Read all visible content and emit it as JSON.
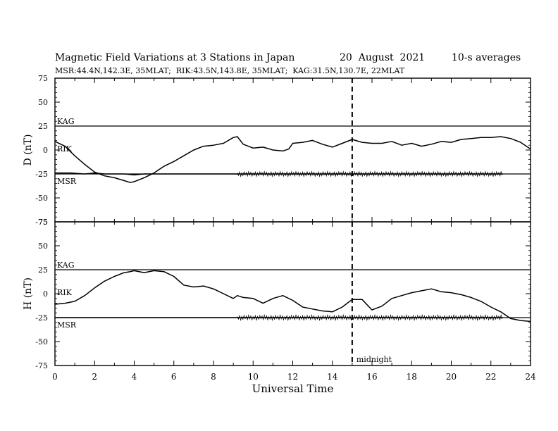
{
  "header": {
    "title": "Magnetic Field Variations at 3 Stations in Japan",
    "date": "20  August  2021",
    "averaging": "10-s averages",
    "stations": "MSR:44.4N,142.3E, 35MLAT;  RIK:43.5N,143.8E, 35MLAT;  KAG:31.5N,130.7E, 22MLAT"
  },
  "chart_data": {
    "type": "line",
    "xlabel": "Universal Time",
    "x_ticks": [
      "0",
      "2",
      "4",
      "6",
      "8",
      "10",
      "12",
      "14",
      "16",
      "18",
      "20",
      "22",
      "24"
    ],
    "xlim": [
      0,
      24
    ],
    "marker": {
      "x": 15,
      "label": "midnight",
      "style": "dashed"
    },
    "panels": [
      {
        "ylabel": "D (nT)",
        "ylim": [
          -75,
          75
        ],
        "y_ticks": [
          "75",
          "50",
          "25",
          "0",
          "-25",
          "-50",
          "-75"
        ],
        "baselines": [
          {
            "name": "KAG",
            "value": 25
          },
          {
            "name": "RIK",
            "value": 0
          },
          {
            "name": "MSR",
            "value": -25
          }
        ],
        "series": [
          {
            "name": "KAG",
            "x": [],
            "y": []
          },
          {
            "name": "RIK",
            "x": [
              0,
              0.5,
              1,
              1.5,
              2,
              2.5,
              3,
              3.5,
              3.8,
              4,
              4.5,
              5,
              5.5,
              6,
              6.5,
              7,
              7.5,
              8,
              8.5,
              9,
              9.2,
              9.5,
              10,
              10.5,
              11,
              11.5,
              11.8,
              12,
              12.5,
              13,
              13.5,
              14,
              14.5,
              15,
              15.5,
              16,
              16.5,
              17,
              17.5,
              18,
              18.5,
              19,
              19.5,
              20,
              20.5,
              21,
              21.5,
              22,
              22.5,
              23,
              23.5,
              24
            ],
            "y": [
              9,
              4,
              -6,
              -15,
              -23,
              -27,
              -29,
              -32,
              -34,
              -33,
              -29,
              -24,
              -17,
              -12,
              -6,
              0,
              4,
              5,
              7,
              13,
              14,
              6,
              2,
              3,
              0,
              -1,
              1,
              7,
              8,
              10,
              6,
              3,
              7,
              11,
              8,
              7,
              7,
              9,
              5,
              7,
              4,
              6,
              9,
              8,
              11,
              12,
              13,
              13,
              14,
              12,
              8,
              1
            ]
          },
          {
            "name": "MSR",
            "x": [
              0,
              0.8,
              1.5,
              2,
              2.5,
              3,
              3.5,
              4,
              4.5,
              5,
              6,
              7,
              8,
              9,
              10,
              11,
              12,
              13,
              14,
              15,
              16,
              17,
              18,
              19,
              20,
              21,
              22,
              22.6
            ],
            "y": [
              -24,
              -24,
              -25,
              -24,
              -25,
              -25,
              -25,
              -26,
              -25,
              -25,
              -25,
              -25,
              -25,
              -25,
              -25,
              -25,
              -25,
              -25,
              -25,
              -25,
              -25,
              -25,
              -25,
              -25,
              -25,
              -25,
              -25,
              -25
            ]
          }
        ]
      },
      {
        "ylabel": "H (nT)",
        "ylim": [
          -75,
          75
        ],
        "y_ticks": [
          "75",
          "50",
          "25",
          "0",
          "-25",
          "-50",
          "-75"
        ],
        "baselines": [
          {
            "name": "KAG",
            "value": 25
          },
          {
            "name": "RIK",
            "value": 0
          },
          {
            "name": "MSR",
            "value": -25
          }
        ],
        "series": [
          {
            "name": "KAG",
            "x": [],
            "y": []
          },
          {
            "name": "RIK",
            "x": [
              0,
              0.5,
              1,
              1.5,
              2,
              2.5,
              3,
              3.5,
              3.8,
              4,
              4.5,
              5,
              5.5,
              6,
              6.5,
              7,
              7.5,
              8,
              8.5,
              9,
              9.2,
              9.5,
              10,
              10.5,
              11,
              11.5,
              12,
              12.5,
              13,
              13.5,
              14,
              14.5,
              15,
              15.5,
              16,
              16.5,
              17,
              17.5,
              18,
              18.5,
              19,
              19.5,
              20,
              20.5,
              21,
              21.5,
              22,
              22.5,
              23,
              23.5,
              24
            ],
            "y": [
              -11,
              -10,
              -8,
              -2,
              6,
              13,
              18,
              22,
              23,
              24,
              22,
              24,
              23,
              18,
              9,
              7,
              8,
              5,
              0,
              -5,
              -2,
              -4,
              -5,
              -10,
              -5,
              -2,
              -7,
              -14,
              -16,
              -18,
              -19,
              -14,
              -6,
              -6,
              -17,
              -13,
              -5,
              -2,
              1,
              3,
              5,
              2,
              1,
              -1,
              -4,
              -8,
              -14,
              -19,
              -26,
              -28,
              -29
            ]
          },
          {
            "name": "MSR",
            "x": [
              0,
              1,
              2,
              3,
              3.6,
              4,
              5,
              6,
              7,
              8,
              9,
              10,
              11,
              12,
              13,
              14,
              15,
              16,
              17,
              18,
              19,
              20,
              21,
              22,
              22.6
            ],
            "y": [
              -25,
              -25,
              -25,
              -25,
              -25,
              -25,
              -25,
              -25,
              -25,
              -25,
              -25,
              -25,
              -25,
              -25,
              -25,
              -25,
              -25,
              -25,
              -25,
              -25,
              -25,
              -25,
              -25,
              -25,
              -25
            ]
          }
        ]
      }
    ]
  }
}
